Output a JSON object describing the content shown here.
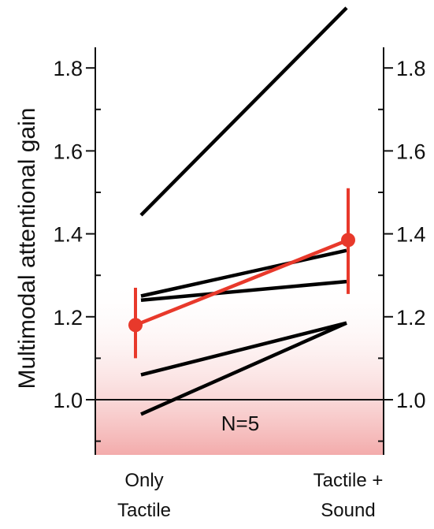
{
  "chart_data": {
    "type": "line",
    "ylabel": "Multimodal attentional gain",
    "categories": [
      [
        "Only",
        "Tactile"
      ],
      [
        "Tactile +",
        "Sound"
      ]
    ],
    "ylim": [
      0.87,
      1.9
    ],
    "yticks": [
      1.0,
      1.2,
      1.4,
      1.6,
      1.8
    ],
    "ytick_labels": [
      "1.0",
      "1.2",
      "1.4",
      "1.6",
      "1.8"
    ],
    "reference_line": 1.0,
    "annotation": "N=5",
    "subjects": [
      {
        "values": [
          1.445,
          1.945
        ]
      },
      {
        "values": [
          1.25,
          1.36
        ]
      },
      {
        "values": [
          1.24,
          1.285
        ]
      },
      {
        "values": [
          1.06,
          1.185
        ]
      },
      {
        "values": [
          0.965,
          1.185
        ]
      }
    ],
    "mean": {
      "values": [
        1.18,
        1.385
      ],
      "error_low": [
        1.1,
        1.255
      ],
      "error_high": [
        1.27,
        1.51
      ]
    },
    "colors": {
      "subjects": "#000000",
      "mean": "#e8392b",
      "shade": "#ef8f8f"
    }
  }
}
